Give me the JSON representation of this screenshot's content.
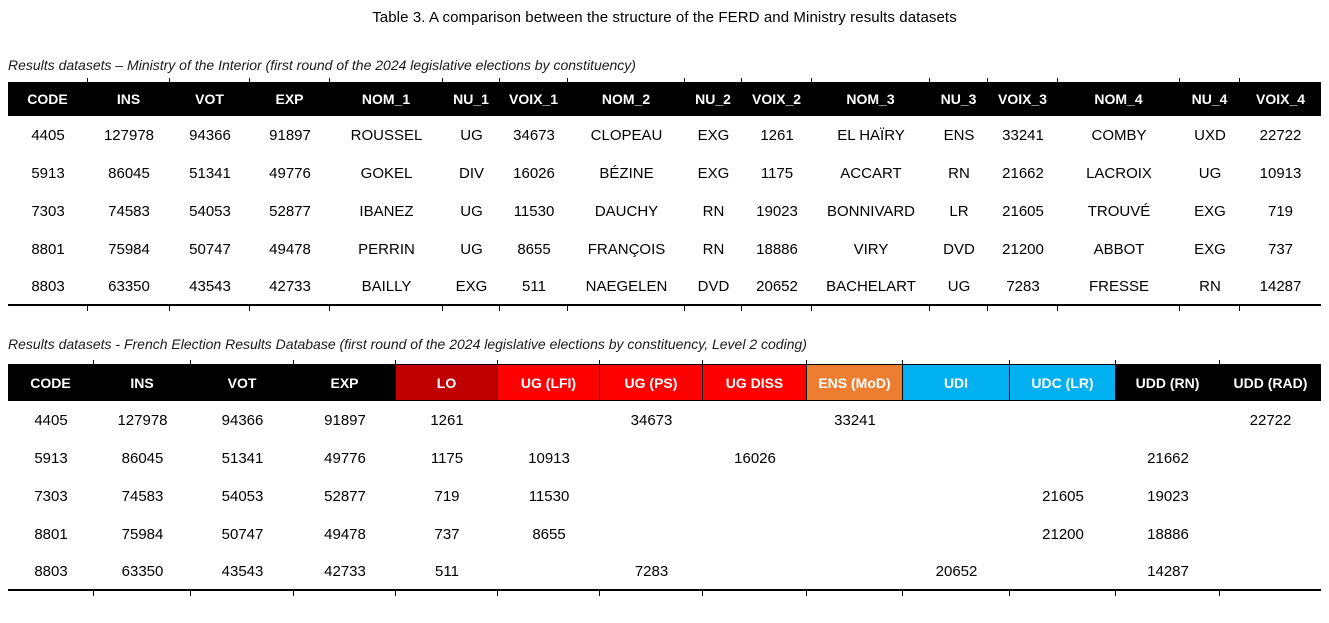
{
  "page": {
    "title": "Table 3. A comparison between the structure of the FERD and Ministry results datasets"
  },
  "colors": {
    "black": "#000000",
    "dark_red": "#C00000",
    "red": "#FF0000",
    "orange": "#ED7D31",
    "blue": "#00B0F0",
    "header_text": "#FFFFFF"
  },
  "ministry_table": {
    "caption": "Results datasets – Ministry of the Interior (first round of the 2024 legislative elections by constituency)",
    "columns": [
      {
        "label": "CODE",
        "color": "black"
      },
      {
        "label": "INS",
        "color": "black"
      },
      {
        "label": "VOT",
        "color": "black"
      },
      {
        "label": "EXP",
        "color": "black"
      },
      {
        "label": "NOM_1",
        "color": "black"
      },
      {
        "label": "NU_1",
        "color": "black"
      },
      {
        "label": "VOIX_1",
        "color": "black"
      },
      {
        "label": "NOM_2",
        "color": "black"
      },
      {
        "label": "NU_2",
        "color": "black"
      },
      {
        "label": "VOIX_2",
        "color": "black"
      },
      {
        "label": "NOM_3",
        "color": "black"
      },
      {
        "label": "NU_3",
        "color": "black"
      },
      {
        "label": "VOIX_3",
        "color": "black"
      },
      {
        "label": "NOM_4",
        "color": "black"
      },
      {
        "label": "NU_4",
        "color": "black"
      },
      {
        "label": "VOIX_4",
        "color": "black"
      }
    ],
    "rows": [
      [
        "4405",
        "127978",
        "94366",
        "91897",
        "ROUSSEL",
        "UG",
        "34673",
        "CLOPEAU",
        "EXG",
        "1261",
        "EL HAÏRY",
        "ENS",
        "33241",
        "COMBY",
        "UXD",
        "22722"
      ],
      [
        "5913",
        "86045",
        "51341",
        "49776",
        "GOKEL",
        "DIV",
        "16026",
        "BÉZINE",
        "EXG",
        "1175",
        "ACCART",
        "RN",
        "21662",
        "LACROIX",
        "UG",
        "10913"
      ],
      [
        "7303",
        "74583",
        "54053",
        "52877",
        "IBANEZ",
        "UG",
        "11530",
        "DAUCHY",
        "RN",
        "19023",
        "BONNIVARD",
        "LR",
        "21605",
        "TROUVÉ",
        "EXG",
        "719"
      ],
      [
        "8801",
        "75984",
        "50747",
        "49478",
        "PERRIN",
        "UG",
        "8655",
        "FRANÇOIS",
        "RN",
        "18886",
        "VIRY",
        "DVD",
        "21200",
        "ABBOT",
        "EXG",
        "737"
      ],
      [
        "8803",
        "63350",
        "43543",
        "42733",
        "BAILLY",
        "EXG",
        "511",
        "NAEGELEN",
        "DVD",
        "20652",
        "BACHELART",
        "UG",
        "7283",
        "FRESSE",
        "RN",
        "14287"
      ]
    ]
  },
  "ferd_table": {
    "caption": "Results datasets - French Election Results Database (first round of the 2024 legislative elections by constituency, Level 2 coding)",
    "columns": [
      {
        "label": "CODE",
        "color": "black"
      },
      {
        "label": "INS",
        "color": "black"
      },
      {
        "label": "VOT",
        "color": "black"
      },
      {
        "label": "EXP",
        "color": "black"
      },
      {
        "label": "LO",
        "color": "dark_red"
      },
      {
        "label": "UG (LFI)",
        "color": "red"
      },
      {
        "label": "UG (PS)",
        "color": "red"
      },
      {
        "label": "UG DISS",
        "color": "red"
      },
      {
        "label": "ENS (MoD)",
        "color": "orange"
      },
      {
        "label": "UDI",
        "color": "blue"
      },
      {
        "label": "UDC (LR)",
        "color": "blue"
      },
      {
        "label": "UDD (RN)",
        "color": "black"
      },
      {
        "label": "UDD (RAD)",
        "color": "black"
      }
    ],
    "rows": [
      [
        "4405",
        "127978",
        "94366",
        "91897",
        "1261",
        "",
        "34673",
        "",
        "33241",
        "",
        "",
        "",
        "22722"
      ],
      [
        "5913",
        "86045",
        "51341",
        "49776",
        "1175",
        "10913",
        "",
        "16026",
        "",
        "",
        "",
        "21662",
        ""
      ],
      [
        "7303",
        "74583",
        "54053",
        "52877",
        "719",
        "11530",
        "",
        "",
        "",
        "",
        "21605",
        "19023",
        ""
      ],
      [
        "8801",
        "75984",
        "50747",
        "49478",
        "737",
        "8655",
        "",
        "",
        "",
        "",
        "21200",
        "18886",
        ""
      ],
      [
        "8803",
        "63350",
        "43543",
        "42733",
        "511",
        "",
        "7283",
        "",
        "",
        "20652",
        "",
        "14287",
        ""
      ]
    ]
  }
}
